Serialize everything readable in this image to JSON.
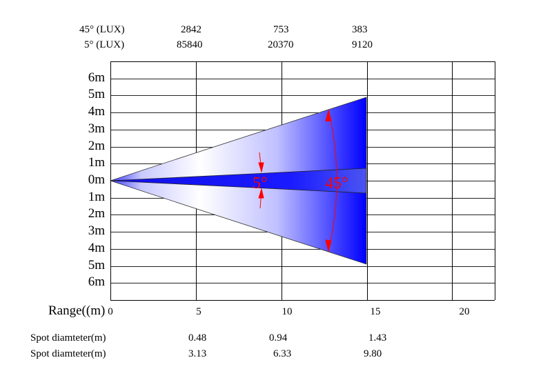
{
  "lux_table": {
    "rows": [
      {
        "label": "45°  (LUX)",
        "values": [
          "2842",
          "753",
          "383"
        ]
      },
      {
        "label": "5°  (LUX)",
        "values": [
          "85840",
          "20370",
          "9120"
        ]
      }
    ]
  },
  "y_axis": {
    "labels": [
      "6m",
      "5m",
      "4m",
      "3m",
      "2m",
      "1m",
      "0m",
      "1m",
      "2m",
      "3m",
      "4m",
      "5m",
      "6m"
    ]
  },
  "x_axis": {
    "title": "Range((m)",
    "ticks": [
      "0",
      "5",
      "10",
      "15",
      "20"
    ]
  },
  "beams": {
    "narrow_label": "5°",
    "wide_label": "45°",
    "narrow_angle_deg": 5,
    "wide_angle_deg": 45,
    "beam_color": "#0000ff",
    "annotation_color": "#ff0000"
  },
  "spot_table": {
    "rows": [
      {
        "label": "Spot diamteter(m)",
        "values": [
          "0.48",
          "0.94",
          "1.43"
        ]
      },
      {
        "label": "Spot diamteter(m)",
        "values": [
          "3.13",
          "6.33",
          "9.80"
        ]
      }
    ]
  }
}
